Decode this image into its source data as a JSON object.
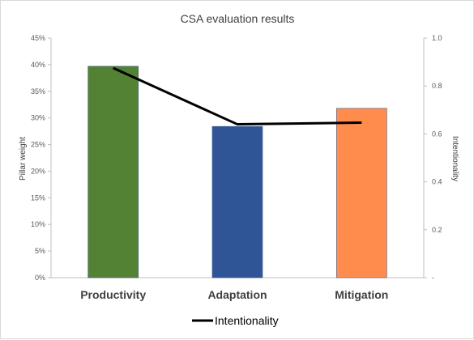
{
  "chart_data": {
    "type": "bar",
    "title": "CSA evaluation results",
    "categories": [
      "Productivity",
      "Adaptation",
      "Mitigation"
    ],
    "bar_colors": [
      "#548235",
      "#2f5597",
      "#ff8c4c"
    ],
    "series": [
      {
        "axis": "left",
        "type": "bar",
        "values": [
          0.397,
          0.284,
          0.318
        ]
      },
      {
        "name": "Intentionality",
        "axis": "right",
        "type": "line",
        "color": "#000000",
        "values": [
          0.875,
          0.64,
          0.647
        ]
      }
    ],
    "ylabel": "Pillar weight",
    "y2label": "Intentionality",
    "ylim": [
      0,
      0.45
    ],
    "y2lim": [
      0,
      1.0
    ],
    "yticks": [
      "0%",
      "5%",
      "10%",
      "15%",
      "20%",
      "25%",
      "30%",
      "35%",
      "40%",
      "45%"
    ],
    "y2ticks": [
      "-",
      "0.2",
      "0.4",
      "0.6",
      "0.8",
      "1.0"
    ],
    "grid": false,
    "legend": "bottom"
  }
}
